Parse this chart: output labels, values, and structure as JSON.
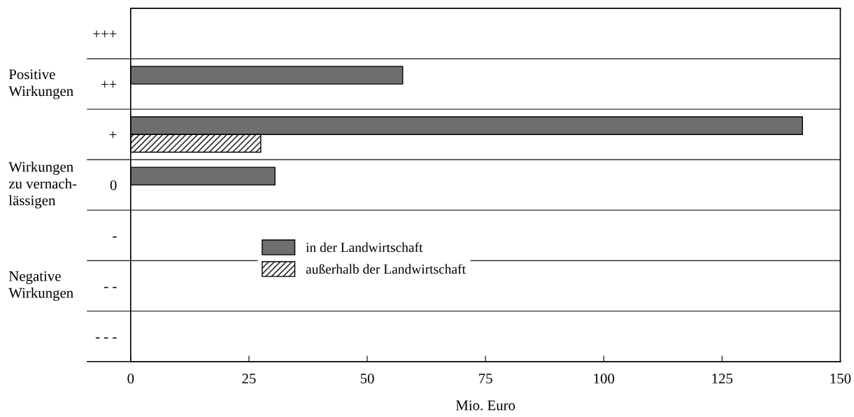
{
  "chart_data": {
    "type": "bar",
    "orientation": "horizontal",
    "categories": [
      "+++",
      "++",
      "+",
      "0",
      "-",
      "- -",
      "- - -"
    ],
    "series": [
      {
        "name": "in der Landwirtschaft",
        "color": "#6e6e6e",
        "values": [
          null,
          57.5,
          142,
          30.5,
          null,
          null,
          null
        ]
      },
      {
        "name": "außerhalb der Landwirtschaft",
        "color": "#000000",
        "values": [
          null,
          null,
          27.5,
          null,
          null,
          null,
          null
        ]
      }
    ],
    "xlabel": "Mio. Euro",
    "xlim": [
      0,
      150
    ],
    "xticks": [
      0,
      25,
      50,
      75,
      100,
      125,
      150
    ],
    "annotations": [
      "Positive\nWirkungen",
      "Wirkungen\nzu vernach-\nlässigen",
      "Negative\nWirkungen"
    ],
    "grid": "y",
    "legend": "center"
  }
}
